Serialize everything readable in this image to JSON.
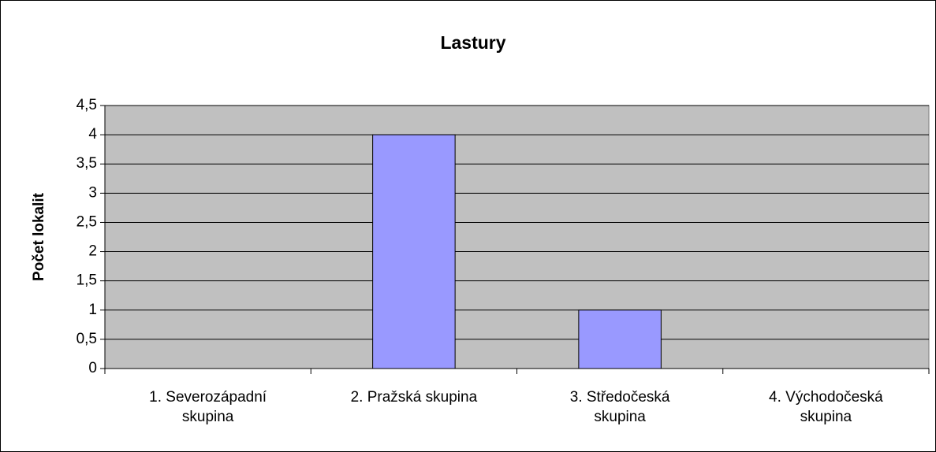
{
  "chart_data": {
    "type": "bar",
    "title": "Lastury",
    "ylabel": "Počet lokalit",
    "categories": [
      "1. Severozápadní skupina",
      "2. Pražská skupina",
      "3. Středočeská skupina",
      "4. Východočeská skupina"
    ],
    "values": [
      0,
      4,
      1,
      0
    ],
    "color": "#9999ff",
    "ylim": [
      0,
      4.5
    ],
    "yticks": [
      0,
      {
        "value": 0.5,
        "label": "0,5"
      },
      1,
      {
        "value": 1.5,
        "label": "1,5"
      },
      2,
      {
        "value": 2.5,
        "label": "2,5"
      },
      3,
      {
        "value": 3.5,
        "label": "3,5"
      },
      4,
      {
        "value": 4.5,
        "label": "4,5"
      }
    ],
    "grid": true
  }
}
